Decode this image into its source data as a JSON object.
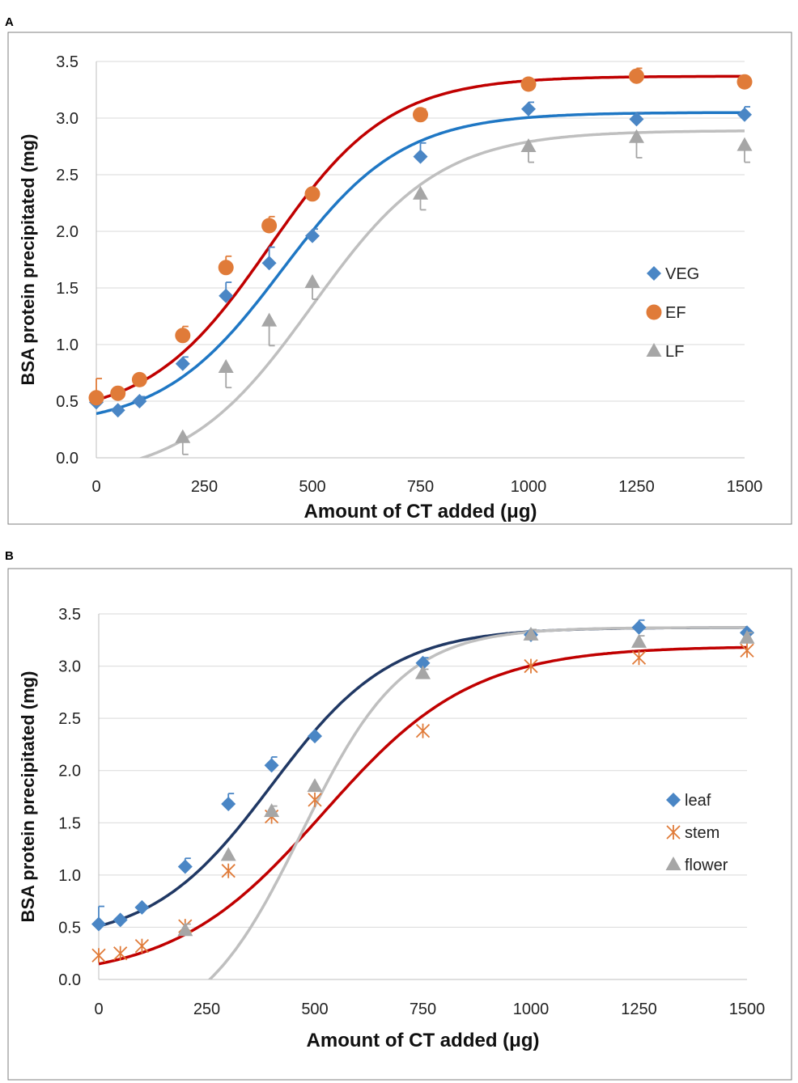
{
  "chart_data": [
    {
      "panel": "A",
      "type": "scatter",
      "xlabel": "Amount of CT added (μg)",
      "ylabel": "BSA protein precipitated (mg)",
      "xlim": [
        0,
        1500
      ],
      "ylim": [
        0,
        3.5
      ],
      "xticks": [
        "0",
        "250",
        "500",
        "750",
        "1000",
        "1250",
        "1500"
      ],
      "yticks": [
        "0.0",
        "0.5",
        "1.0",
        "1.5",
        "2.0",
        "2.5",
        "3.0",
        "3.5"
      ],
      "legend_position": "right-middle",
      "series": [
        {
          "name": "VEG",
          "marker": "diamond",
          "color": "#4a86c5",
          "curve_color": "#1f77c4",
          "x": [
            0,
            50,
            100,
            200,
            300,
            400,
            500,
            750,
            1000,
            1250,
            1500
          ],
          "y": [
            0.49,
            0.42,
            0.5,
            0.83,
            1.43,
            1.72,
            1.96,
            2.66,
            3.08,
            2.99,
            3.03
          ],
          "err": [
            0.0,
            0.0,
            0.04,
            0.06,
            0.12,
            0.14,
            0.06,
            0.12,
            0.06,
            0.06,
            0.07
          ],
          "fit": {
            "bottom": 0.27,
            "top": 3.05,
            "x50": 430,
            "slope": 0.0072
          }
        },
        {
          "name": "EF",
          "marker": "circle",
          "color": "#e07b39",
          "curve_color": "#c00000",
          "x": [
            0,
            50,
            100,
            200,
            300,
            400,
            500,
            750,
            1000,
            1250,
            1500
          ],
          "y": [
            0.53,
            0.57,
            0.69,
            1.08,
            1.68,
            2.05,
            2.33,
            3.03,
            3.3,
            3.37,
            3.32
          ],
          "err": [
            0.17,
            0.0,
            0.0,
            0.08,
            0.1,
            0.08,
            0.0,
            0.05,
            0.0,
            0.07,
            0.0
          ],
          "fit": {
            "bottom": 0.35,
            "top": 3.37,
            "x50": 400,
            "slope": 0.0072
          }
        },
        {
          "name": "LF",
          "marker": "triangle",
          "color": "#a6a6a6",
          "curve_color": "#bfbfbf",
          "x": [
            200,
            300,
            400,
            500,
            750,
            1000,
            1250,
            1500
          ],
          "y": [
            0.18,
            0.8,
            1.21,
            1.55,
            2.33,
            2.75,
            2.83,
            2.76
          ],
          "err": [
            0.15,
            0.18,
            0.22,
            0.15,
            0.14,
            0.14,
            0.18,
            0.15
          ],
          "fit": {
            "bottom": -0.2,
            "top": 2.89,
            "x50": 500,
            "slope": 0.0068,
            "xmin": 50
          }
        }
      ]
    },
    {
      "panel": "B",
      "type": "scatter",
      "xlabel": "Amount of CT added (μg)",
      "ylabel": "BSA protein precipitated (mg)",
      "xlim": [
        0,
        1500
      ],
      "ylim": [
        0,
        3.5
      ],
      "xticks": [
        "0",
        "250",
        "500",
        "750",
        "1000",
        "1250",
        "1500"
      ],
      "yticks": [
        "0.0",
        "0.5",
        "1.0",
        "1.5",
        "2.0",
        "2.5",
        "3.0",
        "3.5"
      ],
      "legend_position": "right-middle",
      "series": [
        {
          "name": "leaf",
          "marker": "diamond",
          "color": "#4a86c5",
          "curve_color": "#203864",
          "x": [
            0,
            50,
            100,
            200,
            300,
            400,
            500,
            750,
            1000,
            1250,
            1500
          ],
          "y": [
            0.53,
            0.57,
            0.69,
            1.08,
            1.68,
            2.05,
            2.33,
            3.03,
            3.3,
            3.37,
            3.32
          ],
          "err": [
            0.17,
            0.0,
            0.0,
            0.08,
            0.1,
            0.08,
            0.0,
            0.05,
            0.0,
            0.07,
            0.0
          ],
          "fit": {
            "bottom": 0.35,
            "top": 3.37,
            "x50": 400,
            "slope": 0.0072
          }
        },
        {
          "name": "stem",
          "marker": "asterisk",
          "color": "#e07b39",
          "curve_color": "#c00000",
          "x": [
            0,
            50,
            100,
            200,
            300,
            400,
            500,
            750,
            1000,
            1250,
            1500
          ],
          "y": [
            0.23,
            0.25,
            0.32,
            0.51,
            1.04,
            1.56,
            1.72,
            2.38,
            3.0,
            3.08,
            3.15
          ],
          "err": [
            0,
            0,
            0,
            0,
            0,
            0,
            0,
            0,
            0,
            0,
            0
          ],
          "fit": {
            "bottom": 0.0,
            "top": 3.19,
            "x50": 520,
            "slope": 0.0058
          }
        },
        {
          "name": "flower",
          "marker": "triangle",
          "color": "#a6a6a6",
          "curve_color": "#bfbfbf",
          "x": [
            200,
            300,
            400,
            500,
            750,
            1000,
            1250,
            1500
          ],
          "y": [
            0.47,
            1.19,
            1.61,
            1.85,
            2.93,
            3.3,
            3.23,
            3.27
          ],
          "err": [
            0.06,
            0.0,
            0.05,
            0.0,
            0.04,
            0.05,
            0.06,
            0.05
          ],
          "fit": {
            "bottom": -0.55,
            "top": 3.37,
            "x50": 470,
            "slope": 0.0085,
            "xmin": 97
          }
        }
      ]
    }
  ]
}
